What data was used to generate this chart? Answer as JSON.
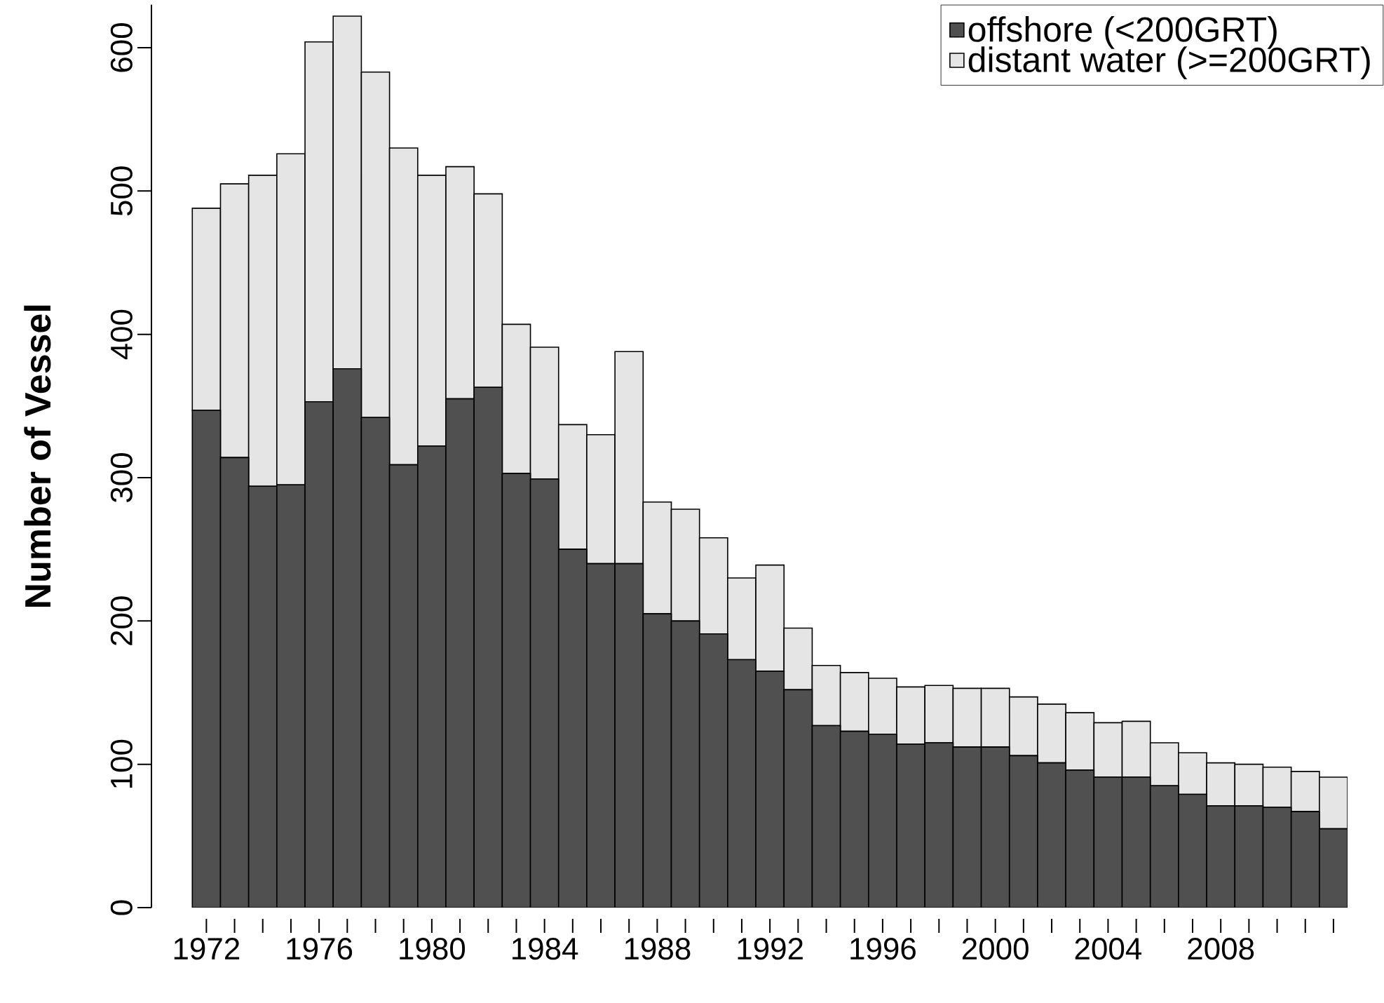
{
  "chart_data": {
    "type": "bar",
    "stacked": true,
    "ylabel": "Number of Vessel",
    "categories": [
      "1972",
      null,
      null,
      null,
      "1976",
      null,
      null,
      null,
      "1980",
      null,
      null,
      null,
      "1984",
      null,
      null,
      null,
      "1988",
      null,
      null,
      null,
      "1992",
      null,
      null,
      null,
      "1996",
      null,
      null,
      null,
      "2000",
      null,
      null,
      null,
      "2004",
      null,
      null,
      null,
      "2008",
      null,
      null,
      null,
      null
    ],
    "series": [
      {
        "name": "offshore (<200GRT)",
        "color": "#505050",
        "values": [
          347,
          314,
          294,
          295,
          353,
          376,
          342,
          309,
          322,
          355,
          363,
          303,
          299,
          250,
          240,
          240,
          205,
          200,
          191,
          173,
          165,
          152,
          127,
          123,
          121,
          114,
          115,
          112,
          112,
          106,
          101,
          96,
          91,
          91,
          85,
          79,
          71,
          71,
          70,
          67,
          55
        ]
      },
      {
        "name": "distant water (>=200GRT)",
        "color": "#e5e5e5",
        "values": [
          141,
          191,
          217,
          231,
          251,
          246,
          241,
          221,
          189,
          162,
          135,
          104,
          92,
          87,
          90,
          148,
          78,
          78,
          67,
          57,
          74,
          43,
          42,
          41,
          39,
          40,
          40,
          41,
          41,
          41,
          41,
          40,
          38,
          39,
          30,
          29,
          30,
          29,
          28,
          28,
          36
        ]
      }
    ],
    "ylim": [
      0,
      630
    ],
    "yticks": [
      0,
      100,
      200,
      300,
      400,
      500,
      600
    ],
    "legend": "top right"
  }
}
